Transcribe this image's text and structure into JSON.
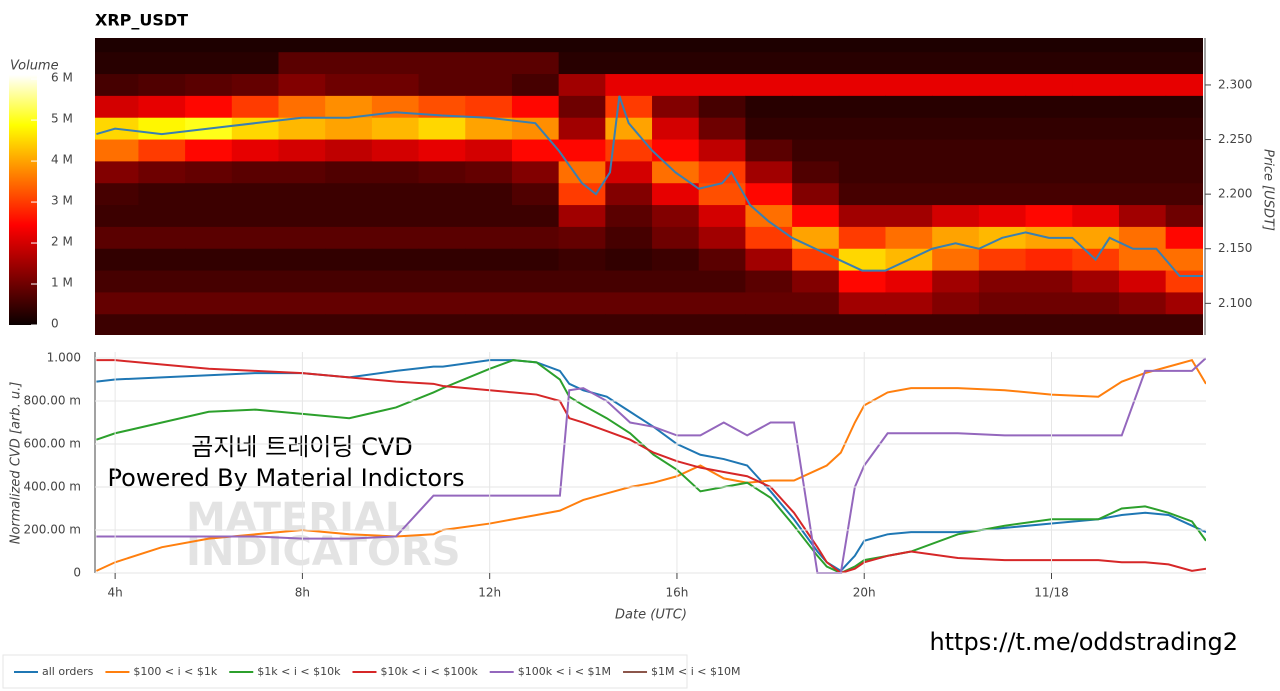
{
  "chart_data": [
    {
      "type": "heatmap",
      "title": "XRP_USDT",
      "y_label": "Price [USDT]",
      "x": [
        4,
        5,
        6,
        7,
        8,
        9,
        10,
        11,
        12,
        13,
        14,
        15,
        16,
        17,
        18,
        19,
        20,
        21,
        22,
        23,
        24,
        25,
        26,
        27
      ],
      "y": [
        2.34,
        2.32,
        2.3,
        2.28,
        2.26,
        2.24,
        2.22,
        2.2,
        2.18,
        2.16,
        2.14,
        2.12,
        2.1,
        2.08
      ],
      "z": [
        [
          0.2,
          0.2,
          0.2,
          0.2,
          0.2,
          0.2,
          0.2,
          0.2,
          0.2,
          0.2,
          0.2,
          0.2,
          0.2,
          0.2,
          0.2,
          0.2,
          0.2,
          0.2,
          0.2,
          0.2,
          0.2,
          0.2,
          0.2,
          0.2
        ],
        [
          0.3,
          0.3,
          0.3,
          0.3,
          0.8,
          0.8,
          0.8,
          0.8,
          0.8,
          0.8,
          0.3,
          0.3,
          0.3,
          0.3,
          0.3,
          0.3,
          0.3,
          0.3,
          0.3,
          0.3,
          0.3,
          0.3,
          0.3,
          0.3
        ],
        [
          0.6,
          0.7,
          0.8,
          0.9,
          1.2,
          1.0,
          1.0,
          0.8,
          0.8,
          0.6,
          1.5,
          2.2,
          2.2,
          2.2,
          2.2,
          2.2,
          2.2,
          2.2,
          2.2,
          2.2,
          2.2,
          2.2,
          2.2,
          2.2
        ],
        [
          2.0,
          2.2,
          2.5,
          3.0,
          3.5,
          3.8,
          3.5,
          3.2,
          3.0,
          2.5,
          1.0,
          3.0,
          1.2,
          0.6,
          0.3,
          0.3,
          0.3,
          0.3,
          0.3,
          0.3,
          0.3,
          0.3,
          0.3,
          0.3
        ],
        [
          4.5,
          4.8,
          5.0,
          4.5,
          4.2,
          4.0,
          4.2,
          4.5,
          4.0,
          3.8,
          1.5,
          4.0,
          2.0,
          1.0,
          0.4,
          0.4,
          0.4,
          0.4,
          0.4,
          0.4,
          0.4,
          0.4,
          0.4,
          0.4
        ],
        [
          3.5,
          3.0,
          2.5,
          2.2,
          2.0,
          1.8,
          2.0,
          2.2,
          2.0,
          2.5,
          2.5,
          3.0,
          2.5,
          1.8,
          0.8,
          0.5,
          0.5,
          0.5,
          0.5,
          0.5,
          0.5,
          0.5,
          0.5,
          0.5
        ],
        [
          1.2,
          1.0,
          0.9,
          0.8,
          0.8,
          0.7,
          0.7,
          0.8,
          0.9,
          1.2,
          3.5,
          2.0,
          3.5,
          3.0,
          1.5,
          0.7,
          0.5,
          0.5,
          0.5,
          0.5,
          0.5,
          0.5,
          0.5,
          0.5
        ],
        [
          0.6,
          0.5,
          0.5,
          0.5,
          0.5,
          0.5,
          0.5,
          0.5,
          0.5,
          0.7,
          3.0,
          1.2,
          2.2,
          3.2,
          2.5,
          1.2,
          0.6,
          0.6,
          0.6,
          0.6,
          0.6,
          0.6,
          0.6,
          0.6
        ],
        [
          0.5,
          0.5,
          0.5,
          0.5,
          0.5,
          0.5,
          0.5,
          0.5,
          0.5,
          0.5,
          1.5,
          0.8,
          1.2,
          2.0,
          3.5,
          2.5,
          1.5,
          1.5,
          2.0,
          2.2,
          2.5,
          2.2,
          1.5,
          1.0
        ],
        [
          0.8,
          0.8,
          0.8,
          0.8,
          0.8,
          0.8,
          0.8,
          0.8,
          0.8,
          0.8,
          0.9,
          0.6,
          1.0,
          1.5,
          3.0,
          4.0,
          3.0,
          3.5,
          4.0,
          4.2,
          4.0,
          4.0,
          3.5,
          2.5
        ],
        [
          0.4,
          0.4,
          0.4,
          0.4,
          0.4,
          0.4,
          0.4,
          0.4,
          0.4,
          0.4,
          0.5,
          0.4,
          0.5,
          0.8,
          1.5,
          3.0,
          4.5,
          4.2,
          3.5,
          3.0,
          2.8,
          3.0,
          3.5,
          3.5
        ],
        [
          0.6,
          0.6,
          0.6,
          0.6,
          0.6,
          0.6,
          0.6,
          0.6,
          0.6,
          0.6,
          0.6,
          0.6,
          0.6,
          0.6,
          0.8,
          1.2,
          2.5,
          2.2,
          1.5,
          1.2,
          1.2,
          1.5,
          2.0,
          3.0
        ],
        [
          0.9,
          0.9,
          0.9,
          0.9,
          0.9,
          0.9,
          0.9,
          0.9,
          0.9,
          0.9,
          0.9,
          0.9,
          0.9,
          0.9,
          0.9,
          0.9,
          1.5,
          1.5,
          1.2,
          1.0,
          1.0,
          1.0,
          1.2,
          1.5
        ],
        [
          0.5,
          0.5,
          0.5,
          0.5,
          0.5,
          0.5,
          0.5,
          0.5,
          0.5,
          0.5,
          0.5,
          0.5,
          0.5,
          0.5,
          0.5,
          0.5,
          0.5,
          0.5,
          0.5,
          0.5,
          0.5,
          0.5,
          0.5,
          0.5
        ]
      ],
      "xlim": [
        3.57,
        27.3
      ],
      "ylim": [
        2.071,
        2.343
      ],
      "yticks": [
        {
          "value": 2.1,
          "label": "2.100"
        },
        {
          "value": 2.15,
          "label": "2.150"
        },
        {
          "value": 2.2,
          "label": "2.200"
        },
        {
          "value": 2.25,
          "label": "2.250"
        },
        {
          "value": 2.3,
          "label": "2.300"
        }
      ],
      "colorbar": {
        "label": "Volume",
        "lim": [
          0,
          6.1
        ],
        "ticks": [
          0,
          {
            "value": 1,
            "label": "1 M"
          },
          {
            "value": 2,
            "label": "2 M"
          },
          {
            "value": 3,
            "label": "3 M"
          },
          {
            "value": 4,
            "label": "4 M"
          },
          {
            "value": 5,
            "label": "5 M"
          },
          {
            "value": 6,
            "label": "6 M"
          }
        ]
      },
      "series": [
        {
          "color": "#3a7fb0",
          "x": [
            3.6,
            4,
            5,
            6,
            7,
            8,
            9,
            10,
            11,
            12,
            13,
            13.5,
            14,
            14.3,
            14.6,
            14.8,
            15,
            15.5,
            16,
            16.5,
            17,
            17.2,
            17.6,
            18,
            18.5,
            19,
            19.5,
            20,
            20.5,
            21,
            21.5,
            22,
            22.5,
            23,
            23.5,
            24,
            24.5,
            25,
            25.3,
            25.8,
            26.3,
            26.8,
            27.3
          ],
          "values": [
            2.255,
            2.26,
            2.255,
            2.26,
            2.265,
            2.27,
            2.27,
            2.275,
            2.272,
            2.27,
            2.265,
            2.24,
            2.21,
            2.2,
            2.22,
            2.29,
            2.265,
            2.24,
            2.22,
            2.205,
            2.21,
            2.22,
            2.19,
            2.175,
            2.16,
            2.15,
            2.14,
            2.13,
            2.13,
            2.14,
            2.15,
            2.155,
            2.15,
            2.16,
            2.165,
            2.16,
            2.16,
            2.14,
            2.16,
            2.15,
            2.15,
            2.125,
            2.125
          ]
        }
      ]
    },
    {
      "type": "line",
      "x_label": "Date (UTC)",
      "y_label": "Normalized CVD [arb. u.]",
      "x": [
        3.6,
        4,
        5,
        6,
        7,
        8,
        9,
        10,
        10.8,
        11,
        12,
        12.5,
        13,
        13.5,
        13.7,
        14,
        14.5,
        15,
        15.5,
        16,
        16.5,
        17,
        17.5,
        18,
        18.5,
        19,
        19.2,
        19.5,
        19.8,
        20,
        20.5,
        21,
        22,
        23,
        24,
        25,
        25.5,
        26,
        26.5,
        27,
        27.3
      ],
      "xlim": [
        3.57,
        27.3
      ],
      "ylim": [
        0,
        1.028
      ],
      "xticks": [
        {
          "value": 4,
          "label": "4h"
        },
        {
          "value": 8,
          "label": "8h"
        },
        {
          "value": 12,
          "label": "12h"
        },
        {
          "value": 16,
          "label": "16h"
        },
        {
          "value": 20,
          "label": "20h"
        },
        {
          "value": 24,
          "label": "11/18"
        }
      ],
      "yticks": [
        0,
        {
          "value": 0.2,
          "label": "200.00 m"
        },
        {
          "value": 0.4,
          "label": "400.00 m"
        },
        {
          "value": 0.6,
          "label": "600.00 m"
        },
        {
          "value": 0.8,
          "label": "800.00 m"
        },
        {
          "value": 1,
          "label": "1.000"
        }
      ],
      "grid": true,
      "annotations": [
        "곰지네 트레이딩 CVD",
        "Powered By Material Indictors"
      ],
      "watermark": [
        "MATERIAL",
        "INDICATORS"
      ],
      "series": [
        {
          "name": "all orders",
          "color": "#1f77b4",
          "values": [
            0.89,
            0.9,
            0.91,
            0.92,
            0.93,
            0.93,
            0.91,
            0.94,
            0.96,
            0.96,
            0.99,
            0.99,
            0.98,
            0.94,
            0.88,
            0.85,
            0.82,
            0.75,
            0.68,
            0.6,
            0.55,
            0.53,
            0.5,
            0.38,
            0.25,
            0.1,
            0.05,
            0.01,
            0.08,
            0.15,
            0.18,
            0.19,
            0.19,
            0.21,
            0.23,
            0.25,
            0.27,
            0.28,
            0.27,
            0.22,
            0.19
          ]
        },
        {
          "name": "$100 < i < $1k",
          "color": "#ff7f0e",
          "values": [
            0.01,
            0.05,
            0.12,
            0.16,
            0.18,
            0.2,
            0.18,
            0.17,
            0.18,
            0.2,
            0.23,
            0.25,
            0.27,
            0.29,
            0.31,
            0.34,
            0.37,
            0.4,
            0.42,
            0.45,
            0.5,
            0.44,
            0.42,
            0.43,
            0.43,
            0.48,
            0.5,
            0.56,
            0.7,
            0.78,
            0.84,
            0.86,
            0.86,
            0.85,
            0.83,
            0.82,
            0.89,
            0.93,
            0.96,
            0.99,
            0.88
          ]
        },
        {
          "name": "$1k < i < $10k",
          "color": "#2ca02c",
          "values": [
            0.62,
            0.65,
            0.7,
            0.75,
            0.76,
            0.74,
            0.72,
            0.77,
            0.84,
            0.86,
            0.95,
            0.99,
            0.98,
            0.9,
            0.82,
            0.78,
            0.72,
            0.65,
            0.55,
            0.48,
            0.38,
            0.4,
            0.42,
            0.35,
            0.22,
            0.08,
            0.03,
            0,
            0.03,
            0.06,
            0.08,
            0.1,
            0.18,
            0.22,
            0.25,
            0.25,
            0.3,
            0.31,
            0.28,
            0.24,
            0.15
          ]
        },
        {
          "name": "$10k < i < $100k",
          "color": "#d62728",
          "values": [
            0.99,
            0.99,
            0.97,
            0.95,
            0.94,
            0.93,
            0.91,
            0.89,
            0.88,
            0.87,
            0.85,
            0.84,
            0.83,
            0.8,
            0.72,
            0.7,
            0.66,
            0.62,
            0.56,
            0.52,
            0.49,
            0.47,
            0.45,
            0.4,
            0.28,
            0.12,
            0.05,
            0,
            0.02,
            0.05,
            0.08,
            0.1,
            0.07,
            0.06,
            0.06,
            0.06,
            0.05,
            0.05,
            0.04,
            0.01,
            0.02
          ]
        },
        {
          "name": "$100k < i < $1M",
          "color": "#9467bd",
          "values": [
            0.17,
            0.17,
            0.17,
            0.17,
            0.17,
            0.16,
            0.16,
            0.17,
            0.36,
            0.36,
            0.36,
            0.36,
            0.36,
            0.36,
            0.85,
            0.86,
            0.8,
            0.7,
            0.68,
            0.64,
            0.64,
            0.7,
            0.64,
            0.7,
            0.7,
            0,
            0,
            0,
            0.4,
            0.5,
            0.65,
            0.65,
            0.65,
            0.64,
            0.64,
            0.64,
            0.64,
            0.94,
            0.94,
            0.94,
            1
          ]
        },
        {
          "name": "$1M < i < $10M",
          "color": "#8c564b",
          "values": [
            null,
            null,
            null,
            null,
            null,
            null,
            null,
            null,
            null,
            null,
            null,
            null,
            null,
            null,
            null,
            null,
            null,
            null,
            null,
            null,
            null,
            null,
            null,
            null,
            null,
            null,
            null,
            null,
            null,
            null,
            null,
            null,
            null,
            null,
            null,
            null,
            null,
            null,
            null,
            null,
            null
          ]
        }
      ]
    }
  ],
  "link": "https://t.me/oddstrading2"
}
